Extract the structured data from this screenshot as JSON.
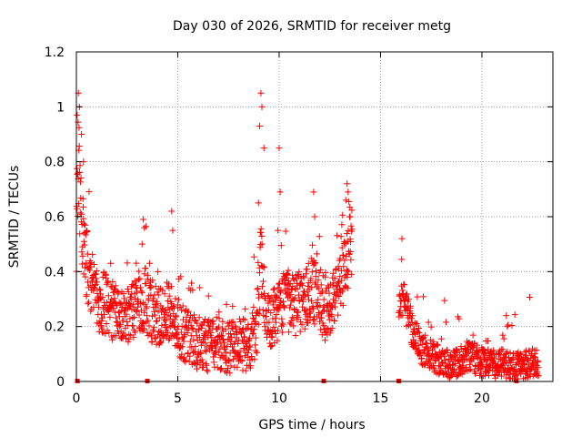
{
  "chart_data": {
    "type": "scatter",
    "title": "Day 030 of 2026, SRMTID for receiver metg",
    "xlabel": "GPS time / hours",
    "ylabel": "SRMTID / TECUs",
    "xlim": [
      0,
      23.5
    ],
    "ylim": [
      0,
      1.2
    ],
    "xticks": [
      0,
      5,
      10,
      15,
      20
    ],
    "xtick_labels": [
      "0",
      "5",
      "10",
      "15",
      "20"
    ],
    "yticks": [
      0,
      0.2,
      0.4,
      0.6,
      0.8,
      1.0,
      1.2
    ],
    "ytick_labels": [
      "0",
      "0.2",
      "0.4",
      "0.6",
      "0.8",
      "1",
      "1.2"
    ],
    "grid": true,
    "marker": "+",
    "color": "#ff0000",
    "gap_markers_x": [
      0.05,
      3.5,
      12.2,
      15.9,
      21.7
    ],
    "series": [
      {
        "name": "SRMTID",
        "segments": [
          {
            "x_start": 0.0,
            "x_end": 13.6,
            "step": 0.012,
            "anchors_x": [
              0.0,
              0.1,
              0.2,
              0.35,
              0.6,
              1.0,
              1.5,
              2.0,
              2.5,
              3.0,
              3.4,
              3.8,
              4.2,
              4.6,
              5.0,
              5.5,
              6.0,
              6.5,
              7.0,
              7.5,
              8.0,
              8.5,
              8.9,
              9.1,
              9.3,
              9.6,
              10.0,
              10.4,
              10.8,
              11.2,
              11.6,
              12.0,
              12.4,
              12.8,
              13.2,
              13.5
            ],
            "anchors_y": [
              0.55,
              0.85,
              0.62,
              0.5,
              0.38,
              0.3,
              0.28,
              0.25,
              0.24,
              0.26,
              0.3,
              0.24,
              0.24,
              0.26,
              0.2,
              0.16,
              0.14,
              0.13,
              0.14,
              0.12,
              0.14,
              0.13,
              0.2,
              0.45,
              0.28,
              0.22,
              0.26,
              0.3,
              0.28,
              0.3,
              0.34,
              0.3,
              0.24,
              0.32,
              0.42,
              0.5
            ],
            "spread": 0.13
          },
          {
            "x_start": 15.9,
            "x_end": 22.8,
            "step": 0.012,
            "anchors_x": [
              15.9,
              16.1,
              16.3,
              16.6,
              17.0,
              17.5,
              18.0,
              18.5,
              19.0,
              19.5,
              20.0,
              20.5,
              21.0,
              21.5,
              22.0,
              22.5,
              22.8
            ],
            "anchors_y": [
              0.28,
              0.3,
              0.26,
              0.18,
              0.12,
              0.1,
              0.07,
              0.06,
              0.08,
              0.09,
              0.07,
              0.06,
              0.07,
              0.05,
              0.06,
              0.07,
              0.07
            ],
            "spread": 0.08
          }
        ],
        "spikes": [
          {
            "x": 0.1,
            "values": [
              1.05,
              1.0,
              0.97,
              0.9,
              0.85,
              0.8
            ]
          },
          {
            "x": 3.3,
            "values": [
              0.59,
              0.56,
              0.5
            ]
          },
          {
            "x": 4.7,
            "values": [
              0.62,
              0.55
            ]
          },
          {
            "x": 9.1,
            "values": [
              1.05,
              1.0,
              0.93,
              0.85,
              0.65
            ]
          },
          {
            "x": 10.0,
            "values": [
              0.85,
              0.69,
              0.55
            ]
          },
          {
            "x": 11.7,
            "values": [
              0.69,
              0.6
            ]
          },
          {
            "x": 13.35,
            "values": [
              0.72,
              0.69,
              0.66,
              0.6
            ]
          },
          {
            "x": 21.2,
            "values": [
              0.24,
              0.2
            ]
          }
        ]
      }
    ]
  }
}
